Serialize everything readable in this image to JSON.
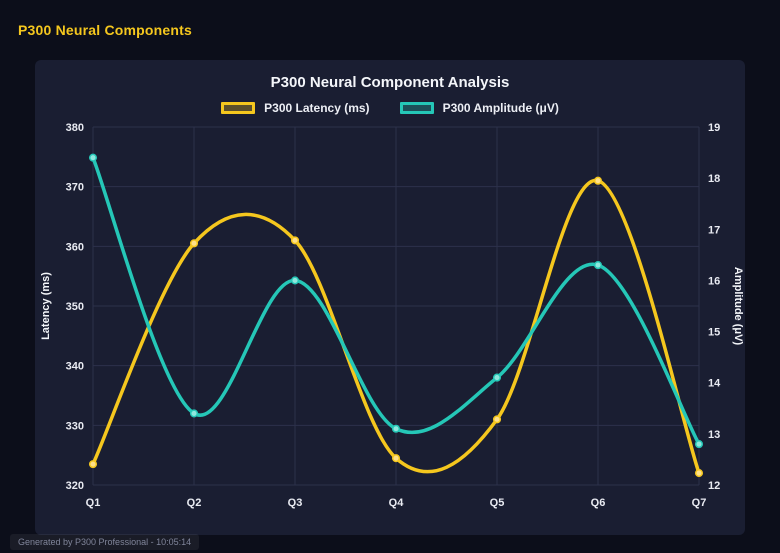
{
  "page": {
    "header_title": "P300 Neural Components",
    "footer": "Generated by P300 Professional - 10:05:14"
  },
  "colors": {
    "background": "#0c0e1a",
    "panel": "#1a1e32",
    "accent_yellow": "#f5c71e",
    "accent_teal": "#25c7b7",
    "grid": "#2c314b",
    "tick_text": "#e9ebf2",
    "axis_title": "#f4f6fa"
  },
  "chart_data": {
    "type": "line",
    "title": "P300 Neural Component Analysis",
    "categories": [
      "Q1",
      "Q2",
      "Q3",
      "Q4",
      "Q5",
      "Q6",
      "Q7"
    ],
    "series": [
      {
        "name": "P300 Latency (ms)",
        "axis": "left",
        "color": "#f5c71e",
        "point_color": "#ffe18a",
        "values": [
          323.5,
          360.5,
          361,
          324.5,
          331,
          371,
          322
        ]
      },
      {
        "name": "P300 Amplitude (μV)",
        "axis": "right",
        "color": "#25c7b7",
        "point_color": "#8fe8de",
        "values": [
          18.4,
          13.4,
          16.0,
          13.1,
          14.1,
          16.3,
          12.8
        ]
      }
    ],
    "axes": {
      "left": {
        "label": "Latency (ms)",
        "min": 320,
        "max": 380,
        "step": 10
      },
      "right": {
        "label": "Amplitude (μV)",
        "min": 12,
        "max": 19,
        "step": 1
      }
    },
    "grid": true,
    "legend_position": "top",
    "smoothing": "spline"
  }
}
